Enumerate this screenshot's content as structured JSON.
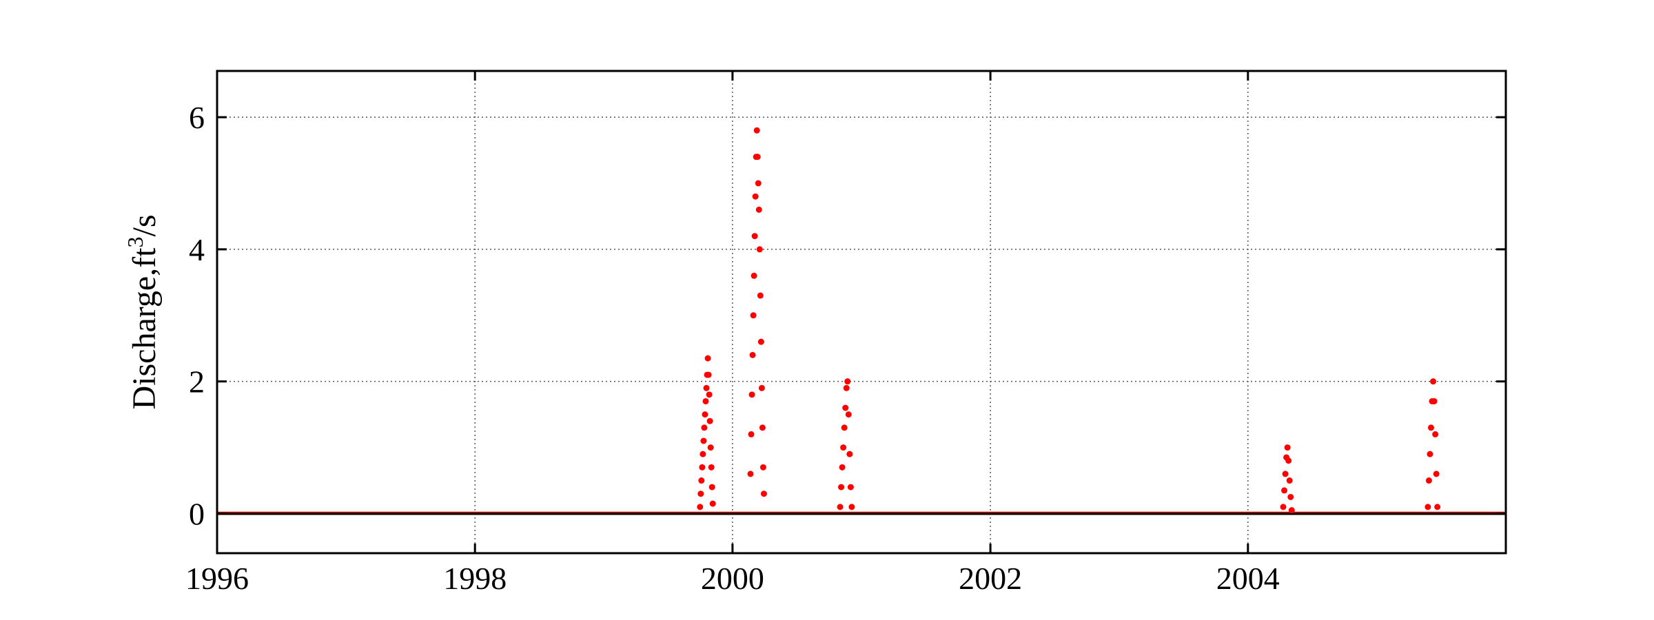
{
  "chart_data": {
    "type": "scatter",
    "title": "",
    "xlabel": "",
    "ylabel": "Discharge,ft",
    "ylabel_superscript": "3",
    "ylabel_suffix": "/s",
    "xlim": [
      "1996-01-01",
      "2006-01-01"
    ],
    "ylim": [
      -0.6,
      6.7
    ],
    "xticks": [
      "1996-01-01",
      "1998-01-01",
      "2000-01-01",
      "2002-01-01",
      "2004-01-01"
    ],
    "xtick_labels": [
      "1996",
      "1998",
      "2000",
      "2002",
      "2004"
    ],
    "yticks": [
      0,
      2,
      4,
      6
    ],
    "ytick_labels": [
      "0",
      "2",
      "4",
      "6"
    ],
    "grid": true,
    "legend": "none",
    "baseline": {
      "name": "",
      "color": "#000000",
      "x": [
        "1996-01-01",
        "2006-01-01"
      ],
      "y": [
        0,
        0
      ]
    },
    "series": [
      {
        "name": "",
        "color": "#ff0000",
        "x": [
          "1999-10-01",
          "1999-10-03",
          "1999-10-05",
          "1999-10-07",
          "1999-10-09",
          "1999-10-11",
          "1999-10-13",
          "1999-10-15",
          "1999-10-17",
          "1999-10-19",
          "1999-10-21",
          "1999-10-23",
          "1999-10-25",
          "1999-10-27",
          "1999-10-29",
          "1999-10-31",
          "1999-11-02",
          "1999-11-04",
          "1999-11-06",
          "2000-02-21",
          "2000-02-23",
          "2000-02-25",
          "2000-02-27",
          "2000-02-29",
          "2000-03-02",
          "2000-03-04",
          "2000-03-06",
          "2000-03-08",
          "2000-03-10",
          "2000-03-12",
          "2000-03-14",
          "2000-03-16",
          "2000-03-18",
          "2000-03-20",
          "2000-03-22",
          "2000-03-24",
          "2000-03-26",
          "2000-03-28",
          "2000-03-30",
          "2000-11-01",
          "2000-11-04",
          "2000-11-07",
          "2000-11-10",
          "2000-11-13",
          "2000-11-16",
          "2000-11-19",
          "2000-11-22",
          "2000-11-25",
          "2000-11-28",
          "2000-12-01",
          "2000-12-04",
          "2004-04-10",
          "2004-04-13",
          "2004-04-16",
          "2004-04-19",
          "2004-04-22",
          "2004-04-25",
          "2004-04-28",
          "2004-05-01",
          "2004-05-04",
          "2005-05-25",
          "2005-05-28",
          "2005-05-31",
          "2005-06-03",
          "2005-06-06",
          "2005-06-09",
          "2005-06-12",
          "2005-06-15",
          "2005-06-18",
          "2005-06-21"
        ],
        "y": [
          0.1,
          0.3,
          0.5,
          0.7,
          0.9,
          1.1,
          1.3,
          1.5,
          1.7,
          1.9,
          2.1,
          2.35,
          2.1,
          1.8,
          1.4,
          1.0,
          0.7,
          0.4,
          0.15,
          0.6,
          1.2,
          1.8,
          2.4,
          3.0,
          3.6,
          4.2,
          4.8,
          5.4,
          5.8,
          5.4,
          5.0,
          4.6,
          4.0,
          3.3,
          2.6,
          1.9,
          1.3,
          0.7,
          0.3,
          0.1,
          0.4,
          0.7,
          1.0,
          1.3,
          1.6,
          1.9,
          2.0,
          1.5,
          0.9,
          0.4,
          0.1,
          0.1,
          0.35,
          0.6,
          0.85,
          1.0,
          0.8,
          0.5,
          0.25,
          0.05,
          0.1,
          0.5,
          0.9,
          1.3,
          1.7,
          2.0,
          1.7,
          1.2,
          0.6,
          0.1
        ]
      }
    ]
  }
}
